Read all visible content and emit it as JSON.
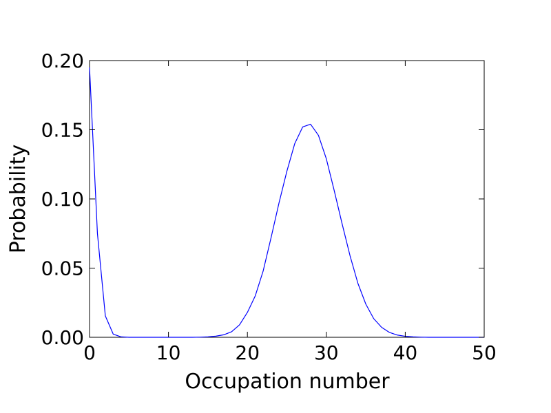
{
  "chart_data": {
    "type": "line",
    "title": "",
    "xlabel": "Occupation number",
    "ylabel": "Probability",
    "xlim": [
      0,
      50
    ],
    "ylim": [
      0,
      0.2
    ],
    "grid": false,
    "legend": "none",
    "x_ticks": [
      "0",
      "10",
      "20",
      "30",
      "40",
      "50"
    ],
    "y_ticks": [
      "0.00",
      "0.05",
      "0.10",
      "0.15",
      "0.20"
    ],
    "series": [
      {
        "color": "#0000ff",
        "x": [
          0,
          1,
          2,
          3,
          4,
          5,
          6,
          7,
          8,
          9,
          10,
          11,
          12,
          13,
          14,
          15,
          16,
          17,
          18,
          19,
          20,
          21,
          22,
          23,
          24,
          25,
          26,
          27,
          28,
          29,
          30,
          31,
          32,
          33,
          34,
          35,
          36,
          37,
          38,
          39,
          40,
          41,
          42,
          43,
          44,
          45,
          46,
          47,
          48,
          49,
          50
        ],
        "values": [
          0.195,
          0.075,
          0.0155,
          0.0023,
          0.0003,
          0,
          0,
          0,
          0,
          0,
          0,
          0,
          0,
          0,
          0.0001,
          0.0003,
          0.0008,
          0.0018,
          0.004,
          0.009,
          0.018,
          0.03,
          0.048,
          0.072,
          0.097,
          0.12,
          0.14,
          0.152,
          0.154,
          0.146,
          0.129,
          0.106,
          0.082,
          0.059,
          0.039,
          0.024,
          0.0135,
          0.0072,
          0.0035,
          0.0016,
          0.0007,
          0.0003,
          0.0001,
          0,
          0,
          0,
          0,
          0,
          0,
          0,
          0
        ]
      }
    ]
  }
}
